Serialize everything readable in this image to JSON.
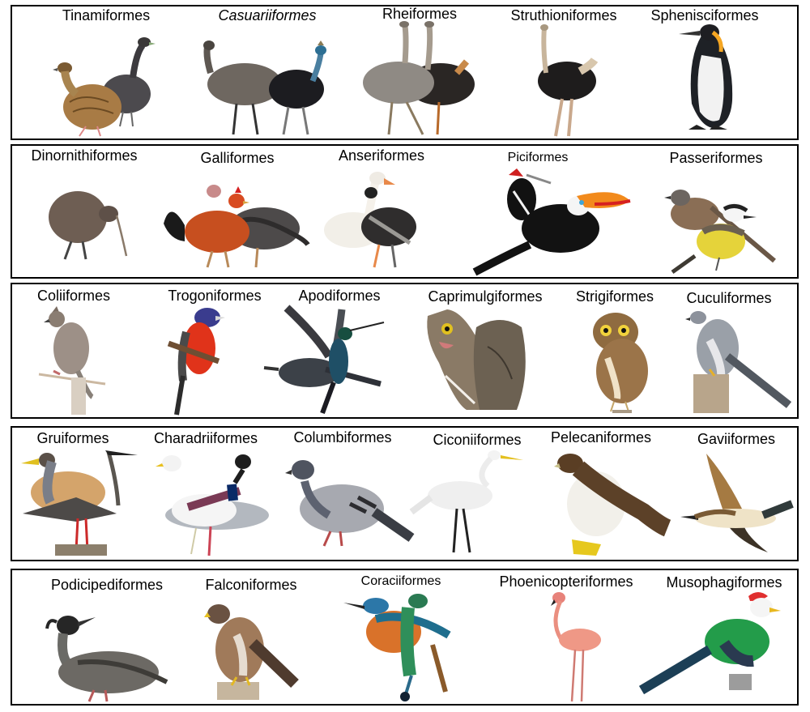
{
  "rows": [
    {
      "orders": [
        {
          "name": "Tinamiformes",
          "icon": "tinamou-icon"
        },
        {
          "name": "Casuariiformes",
          "icon": "emu-cassowary-icon",
          "italic": true
        },
        {
          "name": "Rheiformes",
          "icon": "rhea-icon"
        },
        {
          "name": "Struthioniformes",
          "icon": "ostrich-icon"
        },
        {
          "name": "Sphenisciformes",
          "icon": "penguin-icon"
        }
      ]
    },
    {
      "orders": [
        {
          "name": "Dinornithiformes",
          "icon": "kiwi-icon"
        },
        {
          "name": "Galliformes",
          "icon": "rooster-turkey-icon"
        },
        {
          "name": "Anseriformes",
          "icon": "duck-goose-icon"
        },
        {
          "name": "Piciformes",
          "icon": "woodpecker-toucan-icon"
        },
        {
          "name": "Passeriformes",
          "icon": "sparrow-kiskadee-icon"
        }
      ]
    },
    {
      "orders": [
        {
          "name": "Coliiformes",
          "icon": "mousebird-icon"
        },
        {
          "name": "Trogoniformes",
          "icon": "trogon-icon"
        },
        {
          "name": "Apodiformes",
          "icon": "swift-hummingbird-icon"
        },
        {
          "name": "Caprimulgiformes",
          "icon": "potoo-nightjar-icon"
        },
        {
          "name": "Strigiformes",
          "icon": "owl-icon"
        },
        {
          "name": "Cuculiformes",
          "icon": "cuckoo-icon"
        }
      ]
    },
    {
      "orders": [
        {
          "name": "Gruiformes",
          "icon": "crane-rail-icon"
        },
        {
          "name": "Charadriiformes",
          "icon": "gull-lapwing-icon"
        },
        {
          "name": "Columbiformes",
          "icon": "pigeon-icon"
        },
        {
          "name": "Ciconiiformes",
          "icon": "egret-icon"
        },
        {
          "name": "Pelecaniformes",
          "icon": "booby-icon"
        },
        {
          "name": "Gaviiformes",
          "icon": "loon-icon"
        }
      ]
    },
    {
      "orders": [
        {
          "name": "Podicipediformes",
          "icon": "grebe-icon"
        },
        {
          "name": "Falconiformes",
          "icon": "hawk-icon"
        },
        {
          "name": "Coraciiformes",
          "icon": "kingfisher-motmot-icon"
        },
        {
          "name": "Phoenicopteriformes",
          "icon": "flamingo-icon"
        },
        {
          "name": "Musophagiformes",
          "icon": "turaco-icon"
        }
      ]
    }
  ]
}
